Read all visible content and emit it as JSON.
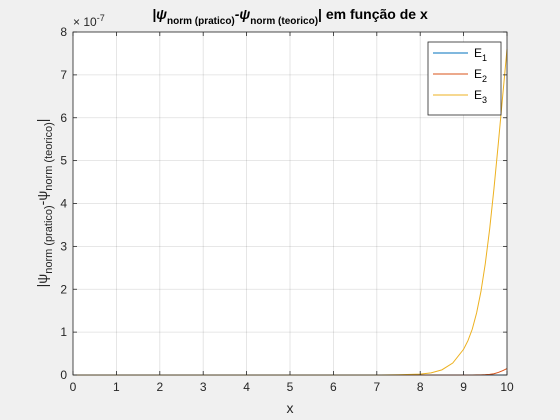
{
  "chart_data": {
    "type": "line",
    "title": {
      "pre": "|ψ",
      "sub1": "norm (pratico)",
      "mid": "-ψ",
      "sub2": "norm (teorico)",
      "post": "| em função de x"
    },
    "xlabel": "x",
    "ylabel": {
      "pre": "|ψ",
      "sub1": "norm (pratico)",
      "mid": "-ψ",
      "sub2": "norm (teorico)",
      "post": "|"
    },
    "y_exponent": {
      "base": "× 10",
      "power": "-7"
    },
    "xlim": [
      0,
      10
    ],
    "ylim": [
      0,
      8
    ],
    "xticks": [
      "0",
      "1",
      "2",
      "3",
      "4",
      "5",
      "6",
      "7",
      "8",
      "9",
      "10"
    ],
    "yticks": [
      "0",
      "1",
      "2",
      "3",
      "4",
      "5",
      "6",
      "7",
      "8"
    ],
    "grid": true,
    "legend_position": "top-right",
    "x": [
      0,
      1,
      2,
      3,
      4,
      5,
      6,
      7,
      7.5,
      8,
      8.25,
      8.5,
      8.75,
      9,
      9.1,
      9.2,
      9.3,
      9.4,
      9.5,
      9.6,
      9.7,
      9.8,
      9.9,
      10
    ],
    "series": [
      {
        "name": "E",
        "sub": "1",
        "color": "#0072bd",
        "values": [
          0,
          0,
          0,
          0,
          0,
          0,
          0,
          0,
          0,
          0,
          0,
          0,
          0,
          0,
          0,
          0,
          0,
          0,
          0,
          0,
          0,
          0,
          0,
          0
        ]
      },
      {
        "name": "E",
        "sub": "2",
        "color": "#d95319",
        "values": [
          0,
          0,
          0,
          0,
          0,
          0,
          0,
          0,
          0,
          0,
          0,
          0,
          0,
          0,
          0,
          0,
          0.002,
          0.004,
          0.008,
          0.015,
          0.03,
          0.06,
          0.1,
          0.15
        ]
      },
      {
        "name": "E",
        "sub": "3",
        "color": "#edb120",
        "values": [
          0,
          0,
          0,
          0,
          0,
          0,
          0,
          0,
          0.005,
          0.02,
          0.05,
          0.12,
          0.28,
          0.6,
          0.8,
          1.07,
          1.45,
          1.95,
          2.6,
          3.4,
          4.35,
          5.4,
          6.5,
          7.6
        ]
      }
    ]
  }
}
